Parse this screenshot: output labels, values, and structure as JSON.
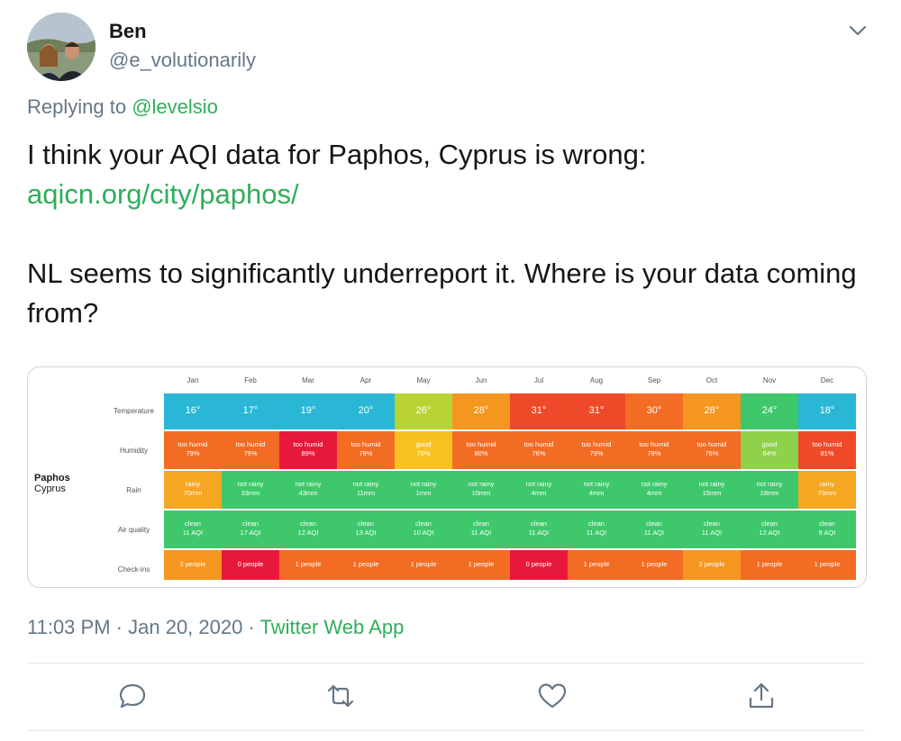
{
  "author": {
    "name": "Ben",
    "handle": "@e_volutionarily"
  },
  "reply": {
    "prefix": "Replying to",
    "to": "@levelsio"
  },
  "tweet": {
    "line1": "I think your AQI data for Paphos, Cyprus is wrong:",
    "link": "aqicn.org/city/paphos/",
    "line2": "NL seems to significantly underreport it. Where is your data coming from?"
  },
  "card": {
    "city": "Paphos",
    "country": "Cyprus",
    "months": [
      "Jan",
      "Feb",
      "Mar",
      "Apr",
      "May",
      "Jun",
      "Jul",
      "Aug",
      "Sep",
      "Oct",
      "Nov",
      "Dec"
    ],
    "row_labels": [
      "Temperature",
      "Humidity",
      "Rain",
      "Air quality",
      "Check-ins"
    ],
    "rows": [
      {
        "key": "temperature",
        "cells": [
          {
            "t": "16°",
            "c": "#2ab7d6"
          },
          {
            "t": "17°",
            "c": "#2ab7d6"
          },
          {
            "t": "19°",
            "c": "#2ab7d6"
          },
          {
            "t": "20°",
            "c": "#2ab7d6"
          },
          {
            "t": "26°",
            "c": "#b8d432"
          },
          {
            "t": "28°",
            "c": "#f5961e"
          },
          {
            "t": "31°",
            "c": "#ee4a2a"
          },
          {
            "t": "31°",
            "c": "#ee4a2a"
          },
          {
            "t": "30°",
            "c": "#f26c24"
          },
          {
            "t": "28°",
            "c": "#f5961e"
          },
          {
            "t": "24°",
            "c": "#3ec76b"
          },
          {
            "t": "18°",
            "c": "#2ab7d6"
          }
        ]
      },
      {
        "key": "humidity",
        "cells": [
          {
            "t": "too humid",
            "s": "79%",
            "c": "#f26c24"
          },
          {
            "t": "too humid",
            "s": "79%",
            "c": "#f26c24"
          },
          {
            "t": "too humid",
            "s": "89%",
            "c": "#e6193b"
          },
          {
            "t": "too humid",
            "s": "78%",
            "c": "#f26c24"
          },
          {
            "t": "good",
            "s": "70%",
            "c": "#f7c220"
          },
          {
            "t": "too humid",
            "s": "80%",
            "c": "#f26c24"
          },
          {
            "t": "too humid",
            "s": "76%",
            "c": "#f26c24"
          },
          {
            "t": "too humid",
            "s": "79%",
            "c": "#f26c24"
          },
          {
            "t": "too humid",
            "s": "78%",
            "c": "#f26c24"
          },
          {
            "t": "too humid",
            "s": "76%",
            "c": "#f26c24"
          },
          {
            "t": "good",
            "s": "64%",
            "c": "#8fd14a"
          },
          {
            "t": "too humid",
            "s": "81%",
            "c": "#ee4a2a"
          }
        ]
      },
      {
        "key": "rain",
        "cells": [
          {
            "t": "rainy",
            "s": "70mm",
            "c": "#f5a623"
          },
          {
            "t": "not rainy",
            "s": "33mm",
            "c": "#3ec76b"
          },
          {
            "t": "not rainy",
            "s": "43mm",
            "c": "#3ec76b"
          },
          {
            "t": "not rainy",
            "s": "11mm",
            "c": "#3ec76b"
          },
          {
            "t": "not rainy",
            "s": "1mm",
            "c": "#3ec76b"
          },
          {
            "t": "not rainy",
            "s": "10mm",
            "c": "#3ec76b"
          },
          {
            "t": "not rainy",
            "s": "4mm",
            "c": "#3ec76b"
          },
          {
            "t": "not rainy",
            "s": "4mm",
            "c": "#3ec76b"
          },
          {
            "t": "not rainy",
            "s": "4mm",
            "c": "#3ec76b"
          },
          {
            "t": "not rainy",
            "s": "15mm",
            "c": "#3ec76b"
          },
          {
            "t": "not rainy",
            "s": "18mm",
            "c": "#3ec76b"
          },
          {
            "t": "rainy",
            "s": "73mm",
            "c": "#f5a623"
          }
        ]
      },
      {
        "key": "air_quality",
        "cells": [
          {
            "t": "clean",
            "s": "11 AQI",
            "c": "#3ec76b"
          },
          {
            "t": "clean",
            "s": "17 AQI",
            "c": "#3ec76b"
          },
          {
            "t": "clean",
            "s": "12 AQI",
            "c": "#3ec76b"
          },
          {
            "t": "clean",
            "s": "13 AQI",
            "c": "#3ec76b"
          },
          {
            "t": "clean",
            "s": "10 AQI",
            "c": "#3ec76b"
          },
          {
            "t": "clean",
            "s": "11 AQI",
            "c": "#3ec76b"
          },
          {
            "t": "clean",
            "s": "11 AQI",
            "c": "#3ec76b"
          },
          {
            "t": "clean",
            "s": "11 AQI",
            "c": "#3ec76b"
          },
          {
            "t": "clean",
            "s": "11 AQI",
            "c": "#3ec76b"
          },
          {
            "t": "clean",
            "s": "11 AQI",
            "c": "#3ec76b"
          },
          {
            "t": "clean",
            "s": "12 AQI",
            "c": "#3ec76b"
          },
          {
            "t": "clean",
            "s": "9 AQI",
            "c": "#3ec76b"
          }
        ]
      },
      {
        "key": "checkins",
        "cells": [
          {
            "t": "2 people",
            "c": "#f5961e"
          },
          {
            "t": "0 people",
            "c": "#e6193b"
          },
          {
            "t": "1 people",
            "c": "#f26c24"
          },
          {
            "t": "1 people",
            "c": "#f26c24"
          },
          {
            "t": "1 people",
            "c": "#f26c24"
          },
          {
            "t": "1 people",
            "c": "#f26c24"
          },
          {
            "t": "0 people",
            "c": "#e6193b"
          },
          {
            "t": "1 people",
            "c": "#f26c24"
          },
          {
            "t": "1 people",
            "c": "#f26c24"
          },
          {
            "t": "2 people",
            "c": "#f5961e"
          },
          {
            "t": "1 people",
            "c": "#f26c24"
          },
          {
            "t": "1 people",
            "c": "#f26c24"
          }
        ]
      }
    ]
  },
  "meta": {
    "time": "11:03 PM",
    "date": "Jan 20, 2020",
    "source": "Twitter Web App",
    "dot": "·"
  },
  "actions": [
    "reply-icon",
    "retweet-icon",
    "like-icon",
    "share-icon"
  ],
  "colors": {
    "link": "#2fae5a",
    "muted": "#657786"
  }
}
